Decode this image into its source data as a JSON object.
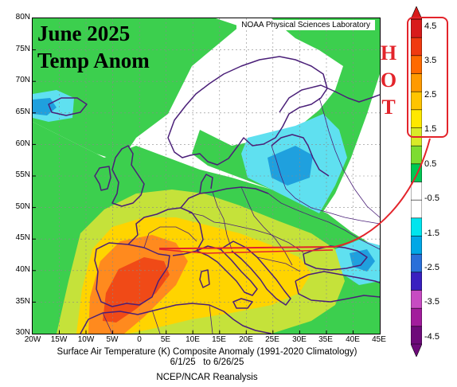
{
  "headline": {
    "line1": "June 2025",
    "line2": "Temp Anom"
  },
  "lab_label": "NOAA Physical Sciences Laboratory",
  "lat_ticks": [
    "80N",
    "75N",
    "70N",
    "65N",
    "60N",
    "55N",
    "50N",
    "45N",
    "40N",
    "35N",
    "30N"
  ],
  "lon_ticks": [
    "20W",
    "15W",
    "10W",
    "5W",
    "0",
    "5E",
    "10E",
    "15E",
    "20E",
    "25E",
    "30E",
    "35E",
    "40E",
    "45E"
  ],
  "caption": {
    "line1": "Surface Air Temperature (K) Composite Anomaly (1991-2020 Climatology)",
    "line2": "6/1/25   to 6/26/25",
    "line3": "NCEP/NCAR Reanalysis"
  },
  "colorbar": {
    "labels": [
      "4.5",
      "3.5",
      "2.5",
      "1.5",
      "0.5",
      "-0.5",
      "-1.5",
      "-2.5",
      "-3.5",
      "-4.5"
    ],
    "colors": [
      "#6e0a7a",
      "#a21c9c",
      "#c74bc2",
      "#3a1fc0",
      "#2a6fd9",
      "#00a7e6",
      "#00e5ee",
      "#ffffff",
      "#ffffff",
      "#00c853",
      "#7ddc30",
      "#d8ea28",
      "#ffe800",
      "#ffc400",
      "#ff9a00",
      "#ff6a00",
      "#f03a10",
      "#d81b1b"
    ]
  },
  "annotation": {
    "letters": [
      "H",
      "O",
      "T"
    ],
    "color": "#e3242b"
  },
  "palette": {
    "hot_strong": "#f04a17",
    "hot": "#ff8a1e",
    "warm": "#ffd400",
    "mild": "#c5e23a",
    "slight": "#3ccf4e",
    "neutral": "#ffffff",
    "cool": "#5fe0f0",
    "cold": "#1fa0de",
    "coast": "#4a1f78"
  }
}
